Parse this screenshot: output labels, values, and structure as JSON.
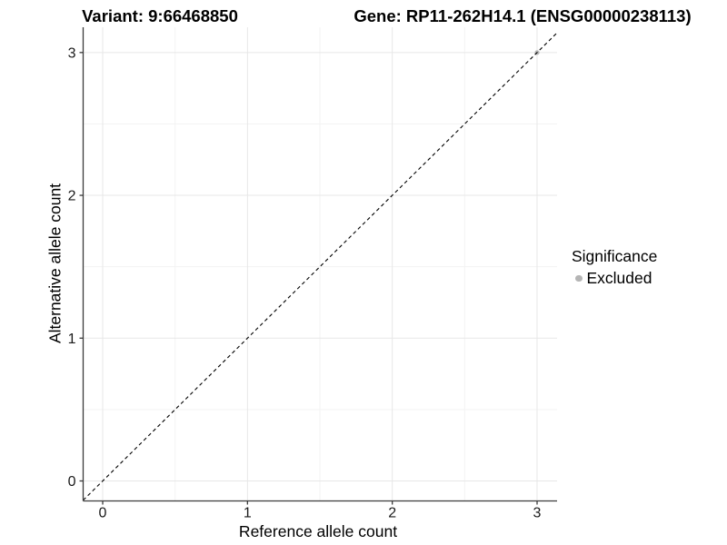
{
  "chart_data": {
    "type": "scatter",
    "title_variant": "Variant: 9:66468850",
    "title_gene": "Gene: RP11-262H14.1 (ENSG00000238113)",
    "xlabel": "Reference allele count",
    "ylabel": "Alternative allele count",
    "x_ticks": [
      0,
      1,
      2,
      3
    ],
    "x_tick_labels": [
      "0",
      "1",
      "2",
      "3"
    ],
    "y_ticks": [
      0,
      1,
      2,
      3
    ],
    "y_tick_labels": [
      "0",
      "1",
      "2",
      "3"
    ],
    "x_minor_ticks": [
      0.5,
      1.5,
      2.5
    ],
    "y_minor_ticks": [
      0.5,
      1.5,
      2.5
    ],
    "xlim": [
      -0.135,
      3.138
    ],
    "ylim": [
      -0.14,
      3.177
    ],
    "grid": "major-and-minor",
    "background": "#ffffff",
    "reference_line": {
      "kind": "abline",
      "slope": 1,
      "intercept": 0,
      "linetype": "dashed",
      "color": "#000000"
    },
    "series": [
      {
        "name": "Excluded",
        "color": "#b5b5b5",
        "points": [
          {
            "x": 3,
            "y": 3
          }
        ]
      }
    ],
    "legend": {
      "title": "Significance",
      "position": "right",
      "entries": [
        {
          "label": "Excluded",
          "color": "#b5b5b5",
          "marker": "circle"
        }
      ]
    },
    "colors": {
      "grid_major": "#e7e7e7",
      "grid_minor": "#f3f3f3",
      "axis_line": "#3a3a3a",
      "tick_label": "#1a1a1a",
      "title": "#000000"
    }
  }
}
